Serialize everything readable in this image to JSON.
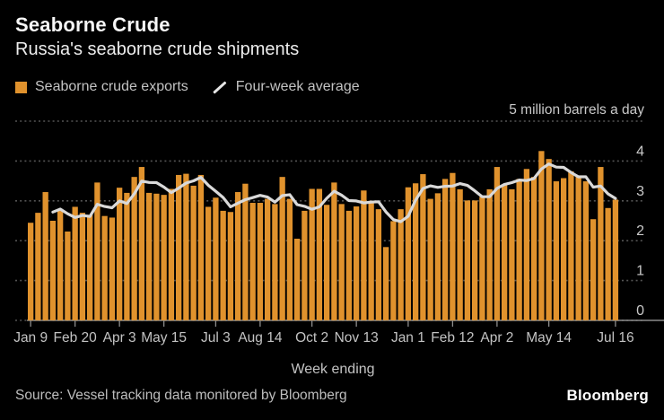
{
  "header": {
    "title": "Seaborne Crude",
    "subtitle": "Russia's seaborne crude shipments"
  },
  "legend": [
    {
      "label": "Seaborne crude exports",
      "swatch": "square",
      "color": "#e0922d"
    },
    {
      "label": "Four-week average",
      "swatch": "diagonal-line",
      "color": "#d9d9d9"
    }
  ],
  "chart_data": {
    "type": "bar",
    "unit_label": "5 million barrels a day",
    "xlabel": "Week ending",
    "ylim": [
      0,
      5
    ],
    "y_gridlines": [
      0,
      1,
      2,
      3,
      4,
      5
    ],
    "y_tick_labels": [
      "0",
      "1",
      "2",
      "3",
      "4"
    ],
    "grid": "dotted",
    "legend_position": "top-left",
    "x_ticks": [
      {
        "label": "Jan 9",
        "week": 0
      },
      {
        "label": "Feb 20",
        "week": 6
      },
      {
        "label": "Apr 3",
        "week": 12
      },
      {
        "label": "May 15",
        "week": 18
      },
      {
        "label": "Jul 3",
        "week": 25
      },
      {
        "label": "Aug 14",
        "week": 31
      },
      {
        "label": "Oct 2",
        "week": 38
      },
      {
        "label": "Nov 13",
        "week": 44
      },
      {
        "label": "Jan 1",
        "week": 51
      },
      {
        "label": "Feb 12",
        "week": 57
      },
      {
        "label": "Apr 2",
        "week": 63
      },
      {
        "label": "May 14",
        "week": 70
      },
      {
        "label": "Jul 16",
        "week": 79
      }
    ],
    "series": [
      {
        "name": "Seaborne crude exports",
        "type": "bar",
        "color": "#e0922d",
        "values": [
          2.45,
          2.7,
          3.22,
          2.5,
          2.75,
          2.23,
          2.85,
          2.7,
          2.65,
          3.46,
          2.62,
          2.58,
          3.33,
          3.2,
          3.6,
          3.85,
          3.2,
          3.18,
          3.15,
          3.3,
          3.65,
          3.68,
          3.38,
          3.65,
          2.85,
          3.08,
          2.75,
          2.72,
          3.22,
          3.43,
          2.95,
          2.95,
          3.05,
          2.92,
          3.6,
          3.05,
          2.05,
          2.75,
          3.3,
          3.3,
          2.9,
          3.46,
          2.92,
          2.75,
          2.86,
          3.26,
          3.0,
          2.79,
          1.84,
          2.49,
          2.79,
          3.34,
          3.44,
          3.67,
          3.05,
          3.19,
          3.55,
          3.7,
          3.29,
          3.01,
          3.01,
          3.1,
          3.29,
          3.85,
          3.4,
          3.29,
          3.55,
          3.8,
          3.6,
          4.25,
          4.05,
          3.49,
          3.57,
          3.74,
          3.61,
          3.49,
          2.54,
          3.85,
          2.82,
          3.03
        ]
      },
      {
        "name": "Four-week average",
        "type": "line",
        "color": "#d9d9d9",
        "derived_from": "4-week rolling mean of Seaborne crude exports"
      }
    ],
    "colors": {
      "background": "#000000",
      "bar": "#e0922d",
      "line": "#d9d9d9",
      "gridline": "#545454",
      "axis": "#8c8c8c",
      "tick_text": "#c3c3c3"
    }
  },
  "footer": {
    "source": "Source: Vessel tracking data monitored by Bloomberg",
    "logo": "Bloomberg"
  }
}
